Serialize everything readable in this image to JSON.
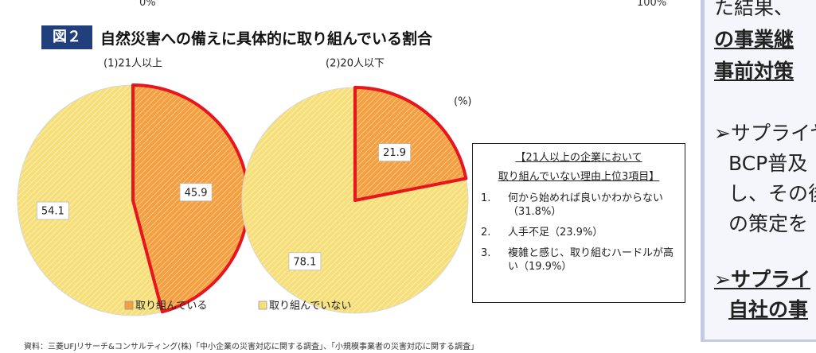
{
  "header": {
    "top_left": "0%",
    "top_right": "100%",
    "figure_label": "図２",
    "title": "自然災害への備えに具体的に取り組んでいる割合"
  },
  "chart_data": [
    {
      "type": "pie",
      "title": "(1)21人以上",
      "categories": [
        "取り組んでいる",
        "取り組んでいない"
      ],
      "values": [
        45.9,
        54.1
      ],
      "colors": [
        "#f4a040",
        "#f6df78"
      ],
      "highlight_border": "#e8141e"
    },
    {
      "type": "pie",
      "title": "(2)20人以下",
      "categories": [
        "取り組んでいる",
        "取り組んでいない"
      ],
      "values": [
        21.9,
        78.1
      ],
      "colors": [
        "#f4a040",
        "#f6df78"
      ],
      "highlight_border": "#e8141e"
    }
  ],
  "unit_label": "(%)",
  "reasons_box": {
    "title_line1": "【21人以上の企業において",
    "title_line2": "取り組んでいない理由上位3項目】",
    "items": [
      {
        "number": "1.",
        "text": "何から始めれば良いかわからない（31.8%）"
      },
      {
        "number": "2.",
        "text": "人手不足（23.9%）"
      },
      {
        "number": "3.",
        "text": "複雑と感じ、取り組むハードルが高い（19.9%）"
      }
    ]
  },
  "side_panel": {
    "lines": [
      "た結果、",
      "の事業継",
      "事前対策",
      "➢サプライヤ",
      "BCP普及",
      "し、その後",
      "の策定を",
      "➢サプライ",
      "自社の事"
    ]
  },
  "source": "資料：三菱UFJリサーチ&コンサルティング(株)「中小企業の災害対応に関する調査」、「小規模事業者の災害対応に関する調査」"
}
